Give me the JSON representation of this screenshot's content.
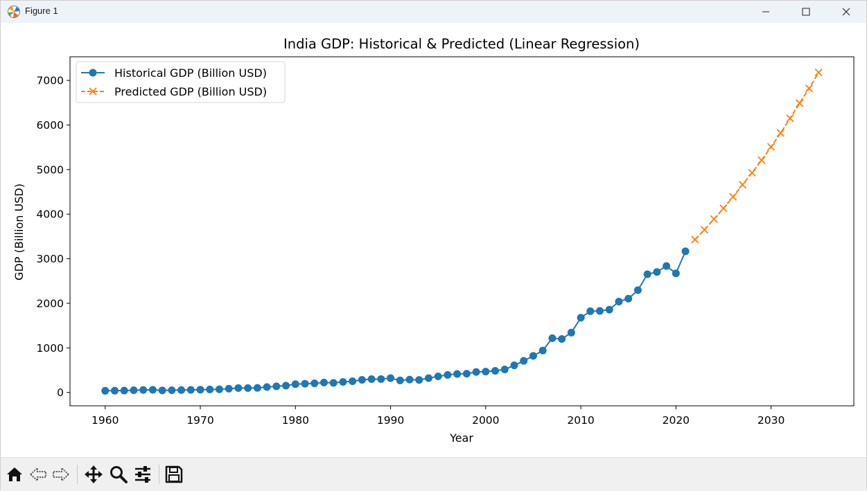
{
  "window": {
    "title": "Figure 1",
    "icons": {
      "app": "matplotlib-icon",
      "minimize": "minimize-icon",
      "maximize": "maximize-icon",
      "close": "close-icon"
    }
  },
  "toolbar": {
    "buttons": [
      {
        "name": "home-button",
        "icon": "home-icon"
      },
      {
        "name": "back-button",
        "icon": "back-arrow-icon"
      },
      {
        "name": "forward-button",
        "icon": "forward-arrow-icon"
      },
      {
        "name": "pan-button",
        "icon": "pan-move-icon"
      },
      {
        "name": "zoom-button",
        "icon": "zoom-magnifier-icon"
      },
      {
        "name": "configure-subplots-button",
        "icon": "sliders-icon"
      },
      {
        "name": "save-button",
        "icon": "save-floppy-icon"
      }
    ]
  },
  "chart_data": {
    "type": "line",
    "title": "India GDP: Historical & Predicted (Linear Regression)",
    "xlabel": "Year",
    "ylabel": "GDP (Billion USD)",
    "xlim": [
      1956.3,
      2038.7
    ],
    "ylim": [
      -300,
      7530
    ],
    "xticks": [
      1960,
      1970,
      1980,
      1990,
      2000,
      2010,
      2020,
      2030
    ],
    "yticks": [
      0,
      1000,
      2000,
      3000,
      4000,
      5000,
      6000,
      7000
    ],
    "grid": false,
    "legend_position": "upper-left",
    "series": [
      {
        "name": "Historical GDP (Billion USD)",
        "color": "#1f77b4",
        "marker": "circle",
        "linestyle": "solid",
        "x": [
          1960,
          1961,
          1962,
          1963,
          1964,
          1965,
          1966,
          1967,
          1968,
          1969,
          1970,
          1971,
          1972,
          1973,
          1974,
          1975,
          1976,
          1977,
          1978,
          1979,
          1980,
          1981,
          1982,
          1983,
          1984,
          1985,
          1986,
          1987,
          1988,
          1989,
          1990,
          1991,
          1992,
          1993,
          1994,
          1995,
          1996,
          1997,
          1998,
          1999,
          2000,
          2001,
          2002,
          2003,
          2004,
          2005,
          2006,
          2007,
          2008,
          2009,
          2010,
          2011,
          2012,
          2013,
          2014,
          2015,
          2016,
          2017,
          2018,
          2019,
          2020,
          2021
        ],
        "y": [
          37,
          39,
          42,
          49,
          56,
          59,
          46,
          50,
          53,
          58,
          62,
          67,
          71,
          85,
          99,
          98,
          102,
          121,
          137,
          152,
          186,
          196,
          204,
          222,
          215,
          236,
          252,
          283,
          299,
          301,
          321,
          270,
          288,
          280,
          322,
          361,
          393,
          415,
          421,
          459,
          468,
          485,
          515,
          608,
          709,
          820,
          940,
          1217,
          1199,
          1342,
          1676,
          1823,
          1828,
          1857,
          2039,
          2104,
          2295,
          2652,
          2703,
          2836,
          2672,
          3167
        ]
      },
      {
        "name": "Predicted GDP (Billion USD)",
        "color": "#ff7f0e",
        "marker": "x",
        "linestyle": "dashed",
        "x": [
          2022,
          2023,
          2024,
          2025,
          2026,
          2027,
          2028,
          2029,
          2030,
          2031,
          2032,
          2033,
          2034,
          2035
        ],
        "y": [
          3430,
          3650,
          3890,
          4130,
          4390,
          4660,
          4930,
          5210,
          5510,
          5820,
          6150,
          6490,
          6820,
          7180
        ]
      }
    ]
  }
}
